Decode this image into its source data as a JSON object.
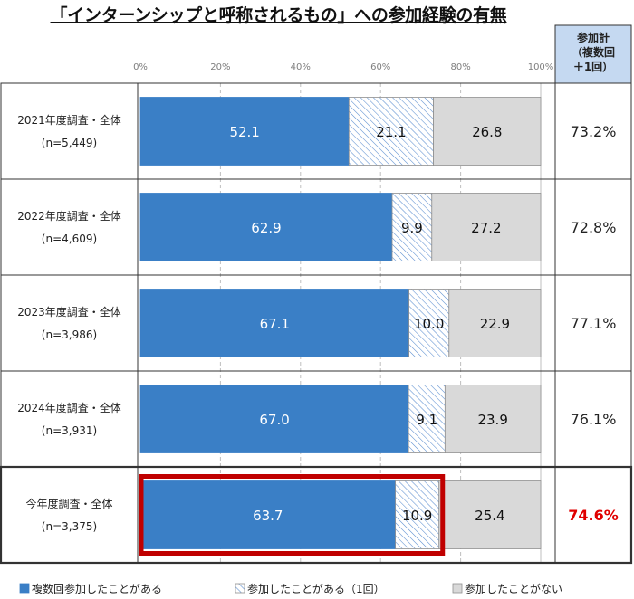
{
  "title": "「インターンシップと呼称されるもの」への参加経験の有無",
  "summary_header": "参加計\n（複数回\n＋1回）",
  "chart_data": {
    "type": "bar",
    "orientation": "horizontal",
    "stacked": true,
    "x_axis": {
      "range": [
        0,
        100
      ],
      "ticks": [
        "0%",
        "20%",
        "40%",
        "60%",
        "80%",
        "100%"
      ],
      "grid": true,
      "position": "top"
    },
    "categories": [
      {
        "label": "2021年度調査・全体",
        "n": "(n=5,449)",
        "total": "73.2%",
        "highlight": false
      },
      {
        "label": "2022年度調査・全体",
        "n": "(n=4,609)",
        "total": "72.8%",
        "highlight": false
      },
      {
        "label": "2023年度調査・全体",
        "n": "(n=3,986)",
        "total": "77.1%",
        "highlight": false
      },
      {
        "label": "2024年度調査・全体",
        "n": "(n=3,931)",
        "total": "76.1%",
        "highlight": false
      },
      {
        "label": "今年度調査・全体",
        "n": "(n=3,375)",
        "total": "74.6%",
        "highlight": true
      }
    ],
    "series": [
      {
        "name": "複数回参加したことがある",
        "values": [
          52.1,
          62.9,
          67.1,
          67.0,
          63.7
        ],
        "labels": [
          "52.1",
          "62.9",
          "67.1",
          "67.0",
          "63.7"
        ],
        "color": "#3a7fc6",
        "style": "solid"
      },
      {
        "name": "参加したことがある（1回）",
        "values": [
          21.1,
          9.9,
          10.0,
          9.1,
          10.9
        ],
        "labels": [
          "21.1",
          "9.9",
          "10.0",
          "9.1",
          "10.9"
        ],
        "color": "#5b8ed0",
        "style": "hatched"
      },
      {
        "name": "参加したことがない",
        "values": [
          26.8,
          27.2,
          22.9,
          23.9,
          25.4
        ],
        "labels": [
          "26.8",
          "27.2",
          "22.9",
          "23.9",
          "25.4"
        ],
        "color": "#d9d9d9",
        "style": "solid"
      }
    ],
    "legend_position": "bottom",
    "colors": {
      "highlight_box": "#c00000",
      "highlight_total": "#e00000",
      "header_fill": "#c5d9f1",
      "border": "#333333"
    }
  }
}
